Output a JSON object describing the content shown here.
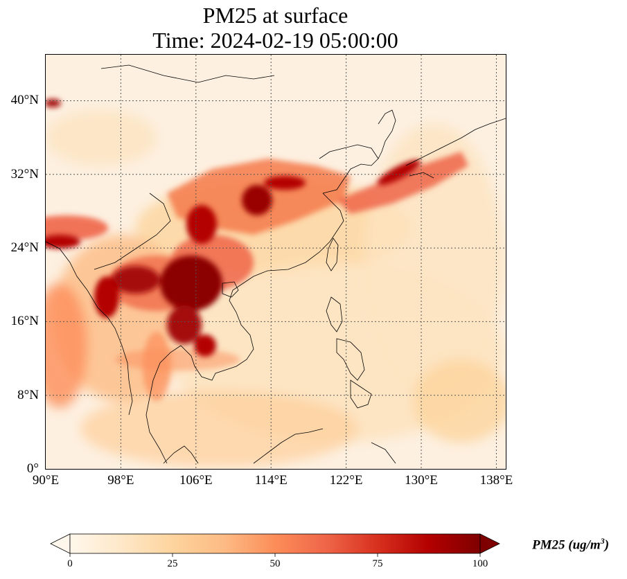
{
  "title": {
    "line1": "PM25 at surface",
    "line2": "Time: 2024-02-19 05:00:00"
  },
  "map": {
    "lon_range": [
      90,
      139
    ],
    "lat_range": [
      0,
      45
    ],
    "lon_ticks": [
      90,
      98,
      106,
      114,
      122,
      130,
      138
    ],
    "lon_tick_labels": [
      "90°E",
      "98°E",
      "106°E",
      "114°E",
      "122°E",
      "130°E",
      "138°E"
    ],
    "lat_ticks": [
      0,
      8,
      16,
      24,
      32,
      40
    ],
    "lat_tick_labels": [
      "0°",
      "8°N",
      "16°N",
      "24°N",
      "32°N",
      "40°N"
    ],
    "gridlines": true,
    "colormap": "OrRd",
    "field": "PM25 surface concentration"
  },
  "colorbar": {
    "range": [
      0,
      100
    ],
    "ticks": [
      "0",
      "25",
      "50",
      "75",
      "100"
    ],
    "extend": "both",
    "label_main": "PM25 (ug/m",
    "label_sup": "3",
    "label_close": ")",
    "colors": [
      "#fff7ec",
      "#fee8c8",
      "#fdd49e",
      "#fdbb84",
      "#fc8d59",
      "#ef6548",
      "#d7301f",
      "#b30000",
      "#7f0000"
    ]
  }
}
